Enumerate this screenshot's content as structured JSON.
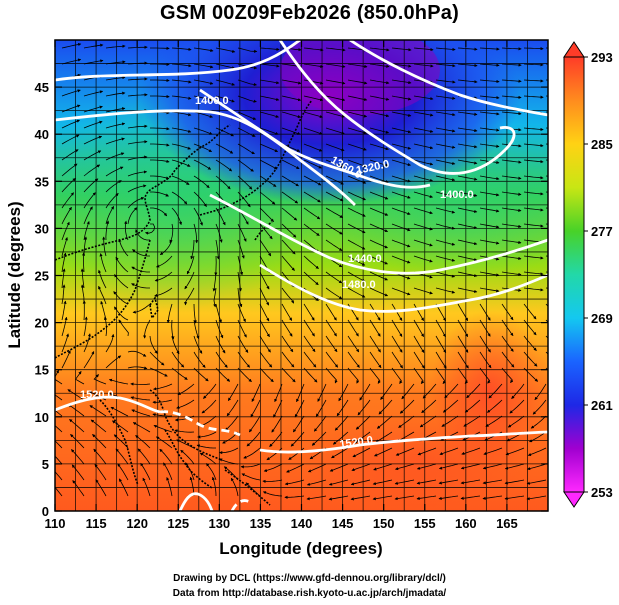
{
  "title": "GSM 00Z09Feb2026 (850.0hPa)",
  "axes": {
    "xlabel": "Longitude (degrees)",
    "ylabel": "Latitude  (degrees)",
    "xlim": [
      110,
      170
    ],
    "ylim": [
      0,
      50
    ],
    "xticks": [
      "110",
      "115",
      "120",
      "125",
      "130",
      "135",
      "140",
      "145",
      "150",
      "155",
      "160",
      "165"
    ],
    "yticks": [
      "0",
      "5",
      "10",
      "15",
      "20",
      "25",
      "30",
      "35",
      "40",
      "45"
    ]
  },
  "colorbar": {
    "min": 253,
    "max": 293,
    "labels": [
      "293",
      "285",
      "277",
      "269",
      "261",
      "253"
    ]
  },
  "contour_labels": [
    "1400.0",
    "1320.0",
    "1360.0",
    "1400.0",
    "1440.0",
    "1480.0",
    "1520.0",
    "1520.0"
  ],
  "credits": {
    "line1": "Drawing by DCL (https://www.gfd-dennou.org/library/dcl/)",
    "line2": "Data from http://database.rish.kyoto-u.ac.jp/arch/jmadata/"
  },
  "colors": {
    "background": "#ffffff",
    "contour": "#ffffff",
    "coast": "#000000",
    "streamline": "#000000"
  }
}
